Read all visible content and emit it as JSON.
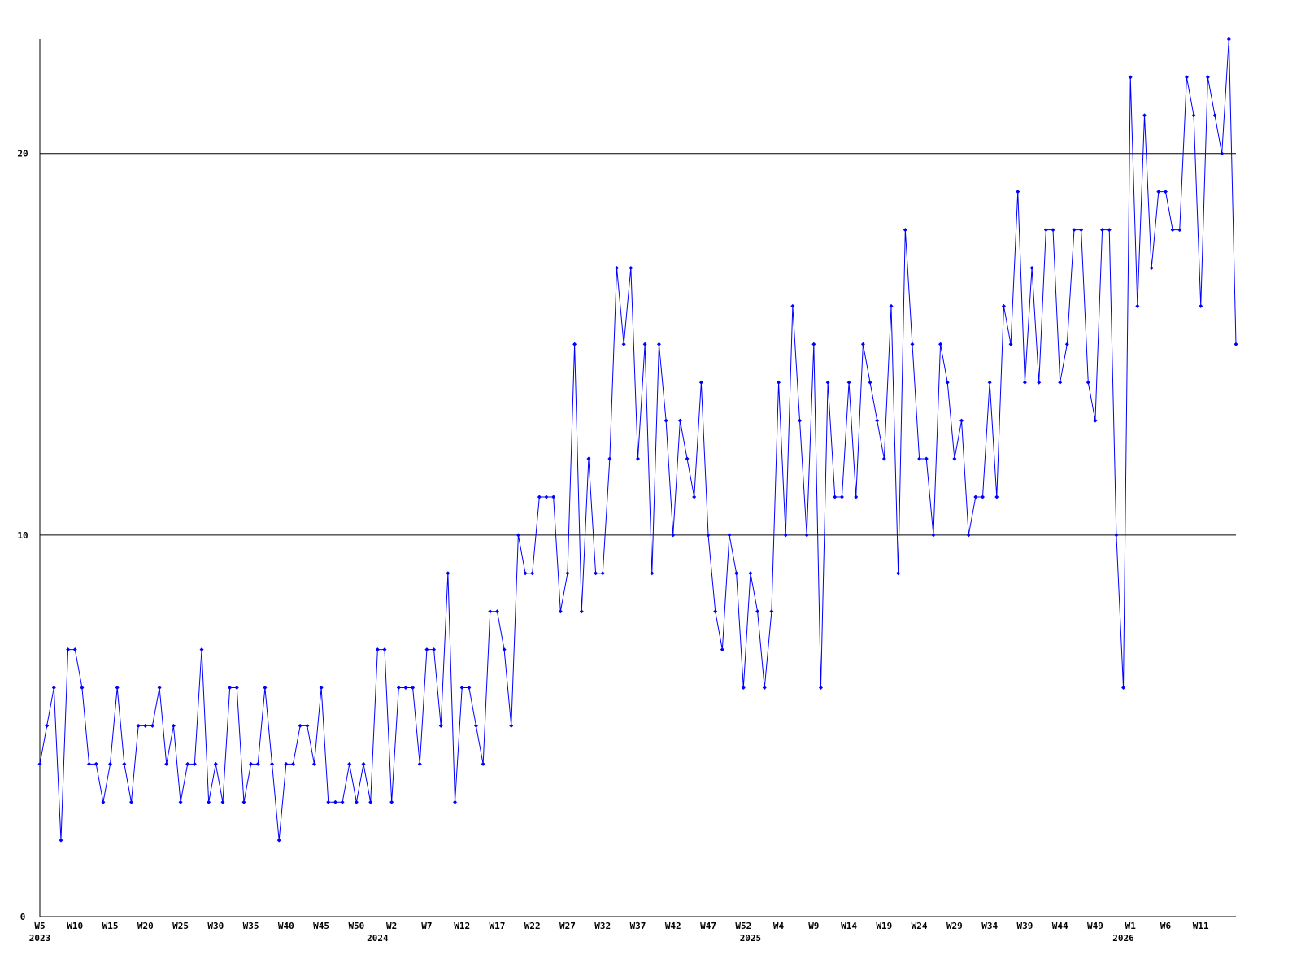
{
  "chart_data": {
    "type": "line",
    "color": "#0000ff",
    "grid": true,
    "ylim": [
      0,
      23
    ],
    "yticks": [
      0,
      10,
      20
    ],
    "categories": [
      "W5",
      null,
      null,
      null,
      null,
      "W10",
      null,
      null,
      null,
      null,
      "W15",
      null,
      null,
      null,
      null,
      "W20",
      null,
      null,
      null,
      null,
      "W25",
      null,
      null,
      null,
      null,
      "W30",
      null,
      null,
      null,
      null,
      "W35",
      null,
      null,
      null,
      null,
      "W40",
      null,
      null,
      null,
      null,
      "W45",
      null,
      null,
      null,
      null,
      "W50",
      null,
      null,
      null,
      null,
      "W2",
      null,
      null,
      null,
      null,
      "W7",
      null,
      null,
      null,
      null,
      "W12",
      null,
      null,
      null,
      null,
      "W17",
      null,
      null,
      null,
      null,
      "W22",
      null,
      null,
      null,
      null,
      "W27",
      null,
      null,
      null,
      null,
      "W32",
      null,
      null,
      null,
      null,
      "W37",
      null,
      null,
      null,
      null,
      "W42",
      null,
      null,
      null,
      null,
      "W47",
      null,
      null,
      null,
      null,
      "W52",
      null,
      null,
      null,
      null,
      "W4",
      null,
      null,
      null,
      null,
      "W9",
      null,
      null,
      null,
      null,
      "W14",
      null,
      null,
      null,
      null,
      "W19",
      null,
      null,
      null,
      null,
      "W24",
      null,
      null,
      null,
      null,
      "W29",
      null,
      null,
      null,
      null,
      "W34",
      null,
      null,
      null,
      null,
      "W39",
      null,
      null,
      null,
      null,
      "W44",
      null,
      null,
      null,
      null,
      "W49",
      null,
      null,
      null,
      null,
      "W1",
      null,
      null,
      null,
      null,
      "W6",
      null,
      null,
      null,
      null,
      "W11",
      null,
      null,
      null,
      null,
      null
    ],
    "years": [
      "2023",
      null,
      null,
      null,
      null,
      null,
      null,
      null,
      null,
      null,
      null,
      null,
      null,
      null,
      null,
      null,
      null,
      null,
      null,
      null,
      null,
      null,
      null,
      null,
      null,
      null,
      null,
      null,
      null,
      null,
      null,
      null,
      null,
      null,
      null,
      null,
      null,
      null,
      null,
      null,
      null,
      null,
      null,
      null,
      null,
      null,
      null,
      null,
      "2024",
      null,
      null,
      null,
      null,
      null,
      null,
      null,
      null,
      null,
      null,
      null,
      null,
      null,
      null,
      null,
      null,
      null,
      null,
      null,
      null,
      null,
      null,
      null,
      null,
      null,
      null,
      null,
      null,
      null,
      null,
      null,
      null,
      null,
      null,
      null,
      null,
      null,
      null,
      null,
      null,
      null,
      null,
      null,
      null,
      null,
      null,
      null,
      null,
      null,
      null,
      null,
      null,
      "2025",
      null,
      null,
      null,
      null,
      null,
      null,
      null,
      null,
      null,
      null,
      null,
      null,
      null,
      null,
      null,
      null,
      null,
      null,
      null,
      null,
      null,
      null,
      null,
      null,
      null,
      null,
      null,
      null,
      null,
      null,
      null,
      null,
      null,
      null,
      null,
      null,
      null,
      null,
      null,
      null,
      null,
      null,
      null,
      null,
      null,
      null,
      null,
      null,
      null,
      null,
      null,
      null,
      "2026",
      null,
      null,
      null,
      null,
      null,
      null,
      null,
      null,
      null,
      null,
      null,
      null,
      null,
      null,
      null,
      null
    ],
    "values": [
      4,
      5,
      6,
      2,
      7,
      7,
      6,
      4,
      4,
      3,
      4,
      6,
      4,
      3,
      5,
      5,
      5,
      6,
      4,
      5,
      3,
      4,
      4,
      7,
      3,
      4,
      3,
      6,
      6,
      3,
      4,
      4,
      6,
      4,
      2,
      4,
      4,
      5,
      5,
      4,
      6,
      3,
      3,
      3,
      4,
      3,
      4,
      3,
      7,
      7,
      3,
      6,
      6,
      6,
      4,
      7,
      7,
      5,
      9,
      3,
      6,
      6,
      5,
      4,
      8,
      8,
      7,
      5,
      10,
      9,
      9,
      11,
      11,
      11,
      8,
      9,
      15,
      8,
      12,
      9,
      9,
      12,
      17,
      15,
      17,
      12,
      15,
      9,
      15,
      13,
      10,
      13,
      12,
      11,
      14,
      10,
      8,
      7,
      10,
      9,
      6,
      9,
      8,
      6,
      8,
      14,
      10,
      16,
      13,
      10,
      15,
      6,
      14,
      11,
      11,
      14,
      11,
      15,
      14,
      13,
      12,
      16,
      9,
      18,
      15,
      12,
      12,
      10,
      15,
      14,
      12,
      13,
      10,
      11,
      11,
      14,
      11,
      16,
      15,
      19,
      14,
      17,
      14,
      18,
      18,
      14,
      15,
      18,
      18,
      14,
      13,
      18,
      18,
      10,
      6,
      22,
      16,
      21,
      17,
      19,
      19,
      18,
      18,
      22,
      21,
      16,
      22,
      21,
      20,
      23,
      15
    ]
  }
}
